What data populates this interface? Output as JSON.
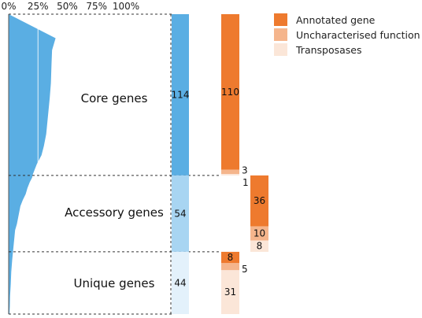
{
  "chart_data": {
    "type": "bar",
    "x_ticks": [
      "0%",
      "25%",
      "50%",
      "75%",
      "100%"
    ],
    "xlim": [
      0,
      100
    ],
    "groups": [
      {
        "name": "Core genes",
        "count": "114",
        "color": "#5aaee3"
      },
      {
        "name": "Accessory genes",
        "count": "54",
        "color": "#a8d5f2"
      },
      {
        "name": "Unique genes",
        "count": "44",
        "color": "#e3f1fb"
      }
    ],
    "prevalence_profile": {
      "color": "#5aaee3",
      "points": [
        [
          0,
          0
        ],
        [
          0.08,
          40
        ],
        [
          0.12,
          37
        ],
        [
          0.17,
          36.5
        ],
        [
          0.23,
          36
        ],
        [
          0.28,
          35
        ],
        [
          0.32,
          34
        ],
        [
          0.36,
          33
        ],
        [
          0.4,
          32
        ],
        [
          0.44,
          30
        ],
        [
          0.47,
          28
        ],
        [
          0.5,
          24
        ],
        [
          0.52,
          22
        ],
        [
          0.535,
          20.5
        ],
        [
          0.545,
          20
        ],
        [
          0.56,
          18
        ],
        [
          0.58,
          16
        ],
        [
          0.6,
          14.5
        ],
        [
          0.62,
          12
        ],
        [
          0.64,
          10
        ],
        [
          0.66,
          9
        ],
        [
          0.68,
          8
        ],
        [
          0.7,
          7
        ],
        [
          0.72,
          5.5
        ],
        [
          0.74,
          5
        ],
        [
          0.78,
          4
        ],
        [
          0.82,
          3
        ],
        [
          0.86,
          2.2
        ],
        [
          0.9,
          1.8
        ],
        [
          0.94,
          1.2
        ],
        [
          0.975,
          1
        ],
        [
          0.99,
          0.8
        ],
        [
          1.0,
          0.8
        ]
      ]
    },
    "legend": [
      {
        "label": "Annotated gene",
        "color": "#ee7a2e"
      },
      {
        "label": "Uncharacterised function",
        "color": "#f5b58c"
      },
      {
        "label": "Transposases",
        "color": "#fbe6d8"
      }
    ],
    "function_stacks": [
      {
        "group": "Core genes",
        "segments": [
          {
            "category": "Annotated gene",
            "value": 110,
            "label": "110"
          },
          {
            "category": "Uncharacterised function",
            "value": 3,
            "label": "3"
          },
          {
            "category": "Transposases",
            "value": 1,
            "label": "1"
          }
        ]
      },
      {
        "group": "Accessory genes",
        "segments": [
          {
            "category": "Annotated gene",
            "value": 36,
            "label": "36"
          },
          {
            "category": "Uncharacterised function",
            "value": 10,
            "label": "10"
          },
          {
            "category": "Transposases",
            "value": 8,
            "label": "8"
          }
        ]
      },
      {
        "group": "Unique genes",
        "segments": [
          {
            "category": "Annotated gene",
            "value": 8,
            "label": "8"
          },
          {
            "category": "Uncharacterised function",
            "value": 5,
            "label": "5"
          },
          {
            "category": "Transposases",
            "value": 31,
            "label": "31"
          }
        ]
      }
    ]
  }
}
